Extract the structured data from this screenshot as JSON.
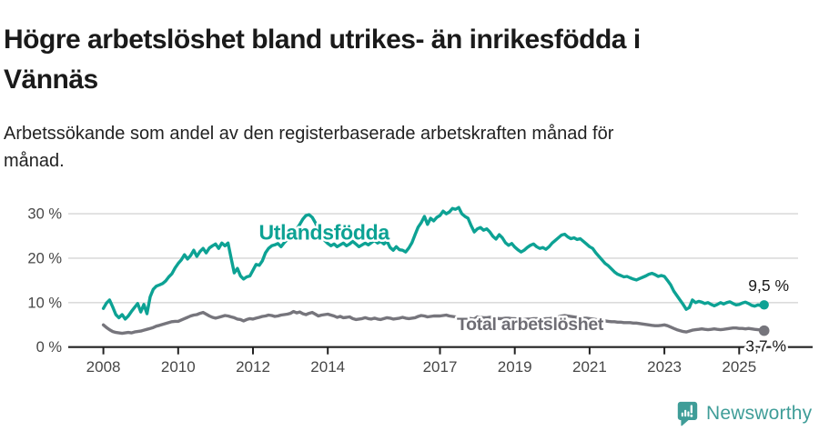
{
  "header": {
    "title": "Högre arbetslöshet bland utrikes- än inrikesfödda i Vännäs",
    "subtitle": "Arbetssökande som andel av den registerbaserade arbetskraften månad för månad."
  },
  "chart_data": {
    "type": "line",
    "title": "Högre arbetslöshet bland utrikes- än inrikesfödda i Vännäs",
    "subtitle": "Arbetssökande som andel av den registerbaserade arbetskraften månad för månad.",
    "xlabel": "",
    "ylabel": "",
    "x_frequency": "monthly",
    "x_range": [
      "2008-01",
      "2025-09"
    ],
    "ylim": [
      0,
      33
    ],
    "grid": true,
    "legend_position": "inline-series-labels",
    "y_ticks": [
      {
        "value": 0,
        "label": "0 %"
      },
      {
        "value": 10,
        "label": "10 %"
      },
      {
        "value": 20,
        "label": "20 %"
      },
      {
        "value": 30,
        "label": "30 %"
      }
    ],
    "x_ticks": [
      {
        "value": 2008,
        "label": "2008"
      },
      {
        "value": 2010,
        "label": "2010"
      },
      {
        "value": 2012,
        "label": "2012"
      },
      {
        "value": 2014,
        "label": "2014"
      },
      {
        "value": 2017,
        "label": "2017"
      },
      {
        "value": 2019,
        "label": "2019"
      },
      {
        "value": 2021,
        "label": "2021"
      },
      {
        "value": 2023,
        "label": "2023"
      },
      {
        "value": 2025,
        "label": "2025"
      }
    ],
    "series": [
      {
        "name": "Utlandsfödda",
        "color": "#0da294",
        "label_color": "#0da294",
        "end_label": "9,5 %",
        "last_value": 9.5,
        "values": [
          8.7,
          9.9,
          10.6,
          9.0,
          7.3,
          6.6,
          7.3,
          6.3,
          7.0,
          8.0,
          8.9,
          9.8,
          7.9,
          9.6,
          7.5,
          11.3,
          13.0,
          13.7,
          14.0,
          14.3,
          14.9,
          15.8,
          16.5,
          17.8,
          18.8,
          19.6,
          20.8,
          19.8,
          20.6,
          21.8,
          20.4,
          21.5,
          22.2,
          21.2,
          22.3,
          22.8,
          23.2,
          22.2,
          23.4,
          22.8,
          23.4,
          20.0,
          16.7,
          17.7,
          16.0,
          15.3,
          15.8,
          16.0,
          17.3,
          18.6,
          18.4,
          19.4,
          21.2,
          22.2,
          22.8,
          23.0,
          23.3,
          22.6,
          23.5,
          24.2,
          24.8,
          25.6,
          26.5,
          27.6,
          28.8,
          29.6,
          29.8,
          29.2,
          28.0,
          26.5,
          25.2,
          24.0,
          23.3,
          22.8,
          23.2,
          22.6,
          23.0,
          23.4,
          22.8,
          23.2,
          23.8,
          23.2,
          22.6,
          23.0,
          23.4,
          23.0,
          23.5,
          24.0,
          23.4,
          23.8,
          23.2,
          23.8,
          22.4,
          21.8,
          22.6,
          21.9,
          21.8,
          21.4,
          22.3,
          23.5,
          25.3,
          27.0,
          28.0,
          29.4,
          27.6,
          29.0,
          28.4,
          29.2,
          29.6,
          30.6,
          30.0,
          30.4,
          31.2,
          31.0,
          31.4,
          30.0,
          29.4,
          29.0,
          27.3,
          25.9,
          26.6,
          26.9,
          26.3,
          26.6,
          25.9,
          24.9,
          24.3,
          25.3,
          24.6,
          23.5,
          22.9,
          23.3,
          22.5,
          21.9,
          21.4,
          21.8,
          22.4,
          22.9,
          23.2,
          22.6,
          22.2,
          22.4,
          22.0,
          22.6,
          23.4,
          24.0,
          24.6,
          25.2,
          25.4,
          24.8,
          24.4,
          24.6,
          24.2,
          24.4,
          23.8,
          23.2,
          22.6,
          22.2,
          21.2,
          20.4,
          19.6,
          18.8,
          18.3,
          17.6,
          16.9,
          16.4,
          16.1,
          15.8,
          15.9,
          15.6,
          15.3,
          15.1,
          15.4,
          15.7,
          16.0,
          16.4,
          16.6,
          16.3,
          15.9,
          16.1,
          15.9,
          15.0,
          14.0,
          12.6,
          11.6,
          10.6,
          9.6,
          8.5,
          8.9,
          10.6,
          10.0,
          10.3,
          10.1,
          9.8,
          10.0,
          9.6,
          9.3,
          9.6,
          10.0,
          9.7,
          10.0,
          10.2,
          9.8,
          9.5,
          9.6,
          9.9,
          10.1,
          9.8,
          9.4,
          9.2,
          9.5,
          9.3,
          9.5
        ]
      },
      {
        "name": "Total arbetslöshet",
        "color": "#76757c",
        "label_color": "#6e6d74",
        "end_label": "3,7 %",
        "last_value": 3.7,
        "values": [
          5.0,
          4.4,
          3.9,
          3.5,
          3.3,
          3.2,
          3.1,
          3.2,
          3.3,
          3.2,
          3.4,
          3.5,
          3.6,
          3.8,
          4.0,
          4.2,
          4.4,
          4.7,
          4.9,
          5.1,
          5.3,
          5.5,
          5.7,
          5.8,
          5.8,
          6.1,
          6.4,
          6.7,
          7.0,
          7.2,
          7.3,
          7.6,
          7.8,
          7.4,
          7.0,
          6.7,
          6.5,
          6.7,
          6.9,
          7.1,
          7.0,
          6.8,
          6.6,
          6.3,
          6.2,
          5.9,
          6.2,
          6.4,
          6.3,
          6.5,
          6.7,
          6.9,
          7.0,
          7.2,
          7.1,
          6.9,
          7.0,
          7.2,
          7.3,
          7.4,
          7.6,
          8.0,
          7.7,
          7.9,
          7.5,
          7.3,
          7.6,
          7.8,
          7.4,
          7.0,
          7.2,
          7.3,
          7.4,
          7.2,
          7.0,
          6.7,
          6.9,
          6.6,
          6.7,
          6.8,
          6.4,
          6.2,
          6.3,
          6.4,
          6.6,
          6.4,
          6.3,
          6.5,
          6.3,
          6.2,
          6.4,
          6.6,
          6.5,
          6.3,
          6.4,
          6.5,
          6.7,
          6.5,
          6.4,
          6.5,
          6.6,
          6.9,
          7.1,
          7.0,
          6.8,
          6.9,
          7.0,
          7.0,
          7.0,
          7.1,
          7.2,
          7.0,
          6.9,
          6.8,
          6.7,
          6.6,
          6.5,
          6.5,
          6.4,
          6.3,
          6.8,
          6.7,
          6.6,
          6.6,
          6.7,
          6.6,
          6.5,
          6.4,
          6.4,
          6.5,
          6.5,
          6.4,
          6.4,
          6.3,
          6.2,
          6.2,
          6.3,
          6.3,
          6.4,
          6.4,
          6.3,
          6.3,
          6.4,
          6.4,
          6.5,
          6.6,
          6.8,
          7.0,
          7.1,
          7.0,
          6.9,
          6.8,
          6.7,
          6.6,
          6.5,
          6.5,
          6.4,
          6.3,
          6.2,
          6.1,
          6.0,
          5.9,
          5.8,
          5.7,
          5.7,
          5.6,
          5.6,
          5.5,
          5.5,
          5.5,
          5.4,
          5.4,
          5.3,
          5.2,
          5.1,
          5.0,
          4.9,
          4.8,
          4.8,
          4.9,
          5.0,
          4.8,
          4.5,
          4.2,
          3.9,
          3.7,
          3.5,
          3.4,
          3.6,
          3.8,
          3.9,
          4.0,
          4.1,
          4.0,
          3.9,
          4.0,
          4.1,
          4.0,
          3.9,
          4.0,
          4.1,
          4.2,
          4.3,
          4.3,
          4.2,
          4.2,
          4.1,
          4.2,
          4.1,
          4.0,
          3.9,
          3.8,
          3.7
        ]
      }
    ]
  },
  "colors": {
    "grid": "#dcdcdc",
    "axis": "#222222",
    "axis_text": "#474747",
    "end_label_text": "#1a1a1a"
  },
  "footer": {
    "brand": "Newsworthy",
    "brand_color": "#3f9d98",
    "icon": "bar-chart-speech-bubble"
  }
}
